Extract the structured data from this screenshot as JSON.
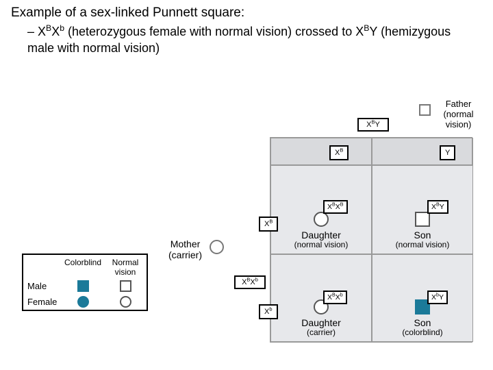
{
  "title": "Example of a sex-linked Punnett square:",
  "subtitle_prefix": "– ",
  "cross_female": "X^B X^b",
  "cross_female_desc": " (heterozygous female with normal vision) crossed to ",
  "cross_male": "X^B Y",
  "cross_male_desc": " (hemizygous male with normal vision)",
  "colors": {
    "affected": "#1b7a99",
    "grid_bg": "#d9dadd",
    "cell_bg": "#e7e8eb"
  },
  "legend": {
    "col1": "Colorblind",
    "col2": "Normal vision",
    "row_male": "Male",
    "row_female": "Female"
  },
  "father": {
    "label": "Father",
    "sub": "(normal vision)",
    "genotype_plain": "X",
    "geno_sup1": "B",
    "geno_after": "Y"
  },
  "mother": {
    "label": "Mother",
    "sub": "(carrier)",
    "geno_a": "X",
    "geno_as": "B",
    "geno_b": "X",
    "geno_bs": "b"
  },
  "gametes": {
    "father_left": {
      "a": "X",
      "as": "B"
    },
    "father_right": {
      "a": "Y",
      "as": ""
    },
    "mother_top": {
      "a": "X",
      "as": "B"
    },
    "mother_bot": {
      "a": "X",
      "as": "b"
    }
  },
  "offspring": {
    "r1c1": {
      "t1": "Daughter",
      "t2": "(normal vision)",
      "shape": "circle",
      "filled": false,
      "g": "X^B X^B"
    },
    "r1c2": {
      "t1": "Son",
      "t2": "(normal vision)",
      "shape": "square",
      "filled": false,
      "g": "X^B Y"
    },
    "r2c1": {
      "t1": "Daughter",
      "t2": "(carrier)",
      "shape": "circle",
      "filled": false,
      "g": "X^B X^b"
    },
    "r2c2": {
      "t1": "Son",
      "t2": "(colorblind)",
      "shape": "square",
      "filled": true,
      "g": "X^b Y"
    }
  }
}
